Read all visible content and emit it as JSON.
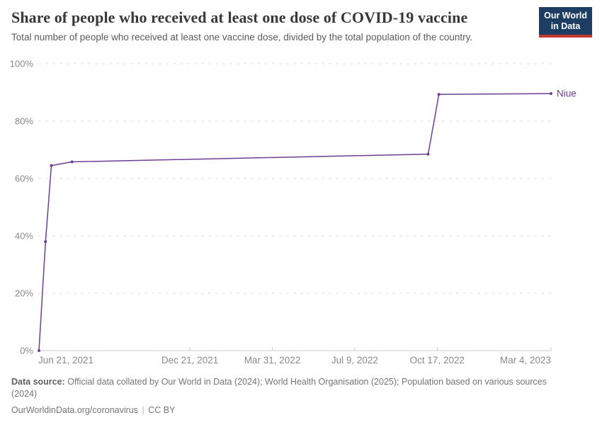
{
  "header": {
    "title": "Share of people who received at least one dose of COVID-19 vaccine",
    "subtitle": "Total number of people who received at least one vaccine dose, divided by the total population of the country.",
    "logo": {
      "line1": "Our World",
      "line2": "in Data"
    }
  },
  "chart_data": {
    "type": "line",
    "title": "Share of people who received at least one dose of COVID-19 vaccine",
    "xlabel": "",
    "ylabel": "",
    "ylim": [
      0,
      100
    ],
    "y_ticks": [
      0,
      20,
      40,
      60,
      80,
      100
    ],
    "y_tick_suffix": "%",
    "x_domain": [
      "2021-06-21",
      "2023-03-04"
    ],
    "x_ticks": [
      {
        "label": "Jun 21, 2021",
        "date": "2021-06-21"
      },
      {
        "label": "Dec 21, 2021",
        "date": "2021-12-21"
      },
      {
        "label": "Mar 31, 2022",
        "date": "2022-03-31"
      },
      {
        "label": "Jul 9, 2022",
        "date": "2022-07-09"
      },
      {
        "label": "Oct 17, 2022",
        "date": "2022-10-17"
      },
      {
        "label": "Mar 4, 2023",
        "date": "2023-03-04"
      }
    ],
    "grid": "horizontal-dashed",
    "legend_position": "line-end-label",
    "series": [
      {
        "name": "Niue",
        "color": "#6D3E91",
        "points": [
          {
            "date": "2021-06-21",
            "value": 0
          },
          {
            "date": "2021-06-29",
            "value": 38
          },
          {
            "date": "2021-07-06",
            "value": 64.5
          },
          {
            "date": "2021-07-31",
            "value": 65.8
          },
          {
            "date": "2022-10-06",
            "value": 68.5
          },
          {
            "date": "2022-10-19",
            "value": 89.3
          },
          {
            "date": "2023-03-04",
            "value": 89.6
          }
        ]
      }
    ]
  },
  "colors": {
    "line": "#6D3E91",
    "grid": "#dddddd",
    "axis": "#cccccc",
    "tick_label": "#8a8a8a",
    "title": "#383838",
    "subtitle": "#5b5b5b",
    "footer": "#757575",
    "logo_bg": "#1d3d63",
    "logo_red": "#c4392e"
  },
  "footer": {
    "source_label": "Data source:",
    "source_text": "Official data collated by Our World in Data (2024); World Health Organisation (2025); Population based on various sources (2024)",
    "link": "OurWorldinData.org/coronavirus",
    "separator": "|",
    "license": "CC BY"
  }
}
